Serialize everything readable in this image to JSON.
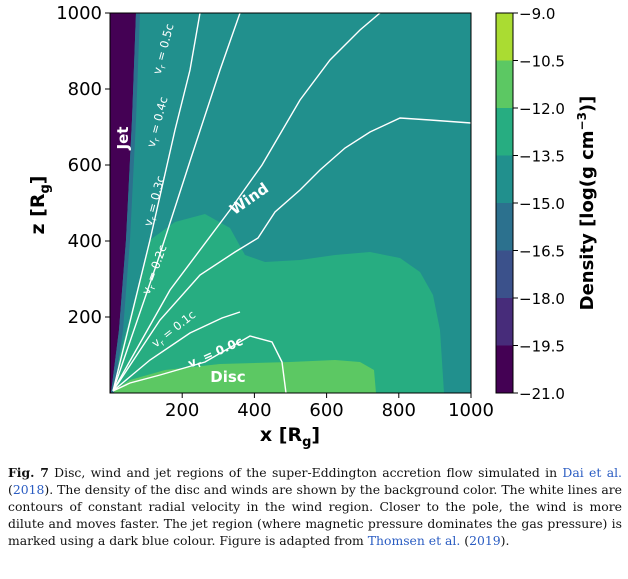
{
  "chart_data": {
    "type": "heatmap",
    "title": "",
    "xlabel": "x [R",
    "xlabel_sub": "g",
    "xlabel_close": "]",
    "ylabel": "z [R",
    "ylabel_sub": "g",
    "ylabel_close": "]",
    "xlim": [
      0,
      1000
    ],
    "ylim": [
      0,
      1000
    ],
    "x_ticks": [
      200,
      400,
      600,
      800,
      1000
    ],
    "y_ticks": [
      200,
      400,
      600,
      800,
      1000
    ],
    "colorbar": {
      "label": "Density [log(g cm",
      "label_sup": "−3",
      "label_close": ")]",
      "levels": [
        -21.0,
        -19.5,
        -18.0,
        -16.5,
        -15.0,
        -13.5,
        -12.0,
        -10.5,
        -9.0
      ],
      "tick_labels": [
        "−21.0",
        "−19.5",
        "−18.0",
        "−16.5",
        "−15.0",
        "−13.5",
        "−12.0",
        "−10.5",
        "−9.0"
      ],
      "colors": [
        "#440154",
        "#472c7a",
        "#3b518b",
        "#2c718e",
        "#21908d",
        "#27ad81",
        "#5cc863",
        "#aadc32",
        "#fde725"
      ]
    },
    "regions": [
      {
        "label": "Jet",
        "color": "#440154"
      },
      {
        "label": "Wind",
        "color": "#21908d"
      },
      {
        "label": "Disc",
        "color": "#5cc863"
      }
    ],
    "velocity_contours": [
      {
        "label": "v",
        "label_sub": "r",
        "label_value": " = 0.5c",
        "value": 0.5
      },
      {
        "label": "v",
        "label_sub": "r",
        "label_value": " = 0.4c",
        "value": 0.4
      },
      {
        "label": "v",
        "label_sub": "r",
        "label_value": " = 0.3c",
        "value": 0.3
      },
      {
        "label": "v",
        "label_sub": "r",
        "label_value": " = 0.2c",
        "value": 0.2
      },
      {
        "label": "v",
        "label_sub": "r",
        "label_value": " = 0.1c",
        "value": 0.1
      },
      {
        "label": "v",
        "label_sub": "r",
        "label_value": " = 0.0c",
        "value": 0.0
      }
    ]
  },
  "caption": {
    "fig_label": "Fig. 7",
    "text_1": " Disc, wind and jet regions of the super-Eddington accretion flow simulated in ",
    "cite_1": "Dai et al.",
    "text_2": " (",
    "cite_1_year": "2018",
    "text_3": "). The density of the disc and winds are shown by the background color. The white lines are contours of constant radial velocity in the wind region. Closer to the pole, the wind is more dilute and moves faster. The jet region (where magnetic pressure dominates the gas pressure) is marked using a dark blue colour. Figure is adapted from ",
    "cite_2": "Thomsen et al.",
    "text_4": " (",
    "cite_2_year": "2019",
    "text_5": ")."
  }
}
